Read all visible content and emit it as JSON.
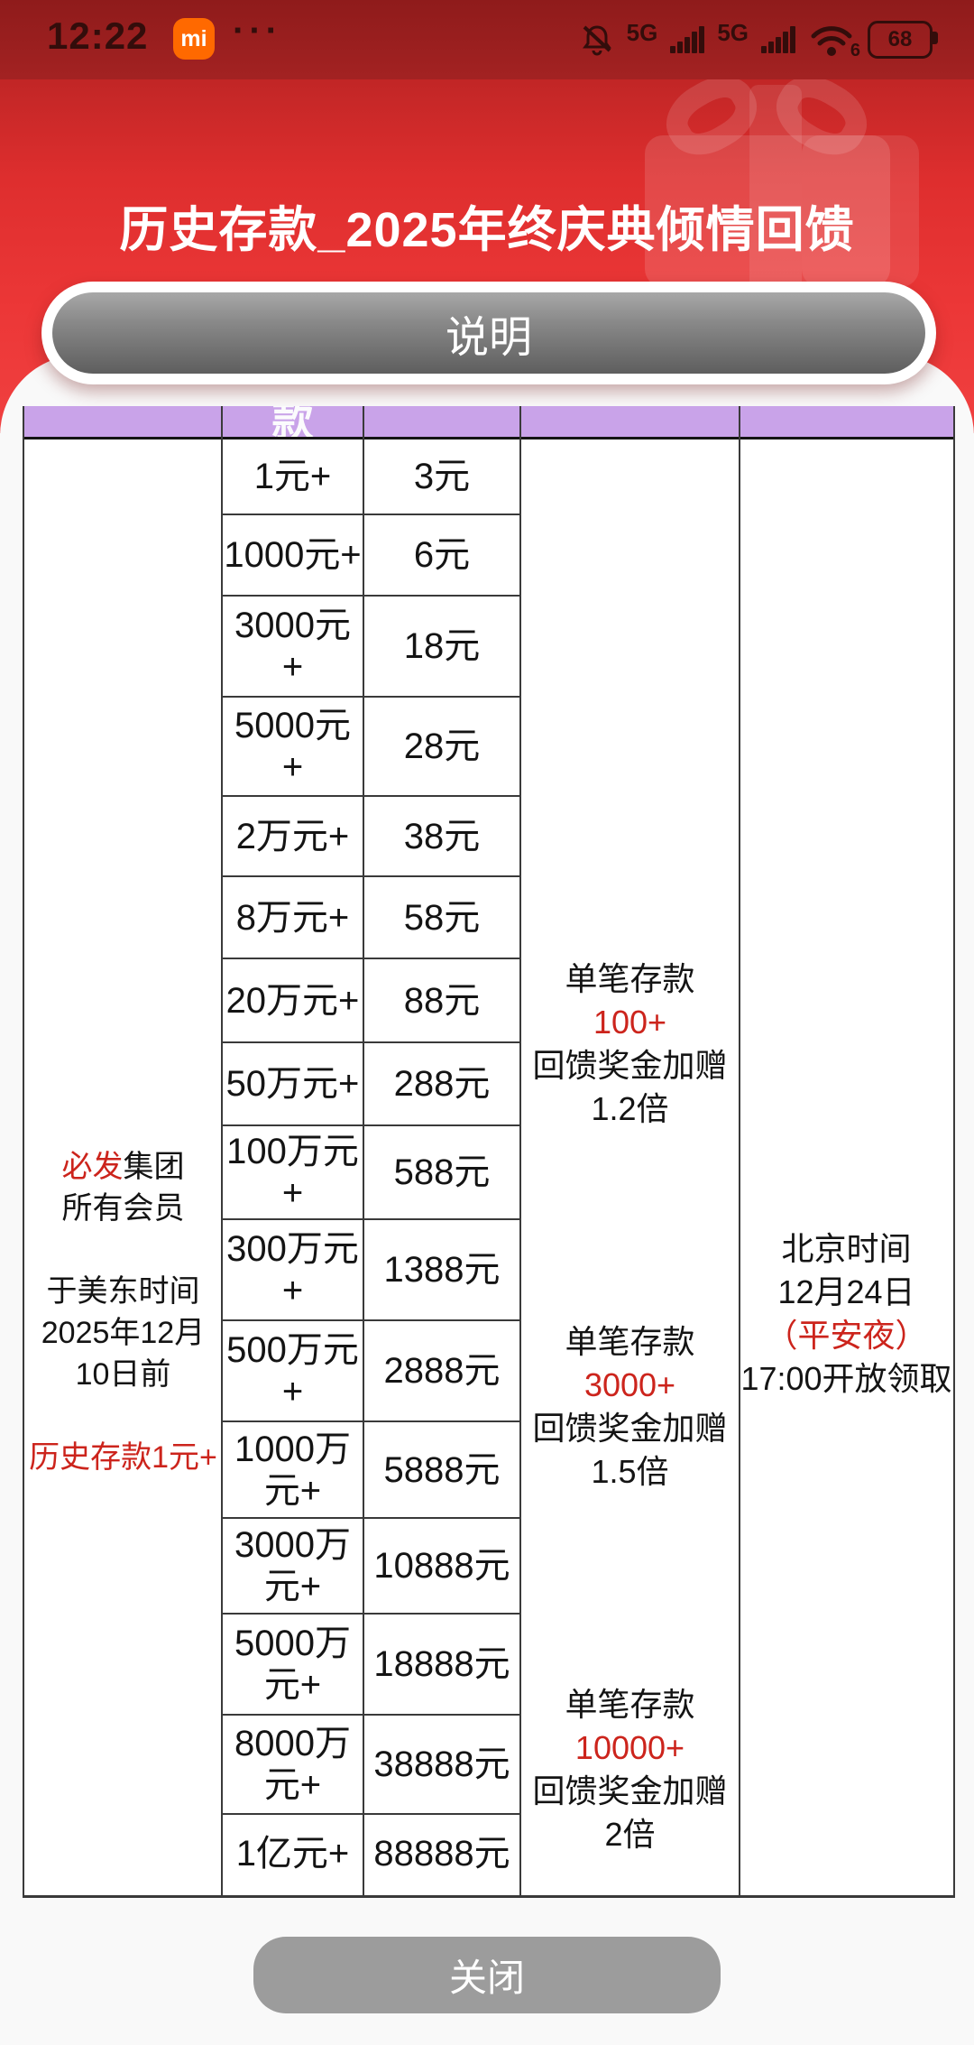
{
  "status_bar": {
    "time": "12:22",
    "mi_logo_text": "mi",
    "overflow_dots": "···",
    "network1_label": "5G",
    "network2_label": "5G",
    "wifi_standard": "6",
    "battery_percent": "68"
  },
  "header": {
    "title": "历史存款_2025年终庆典倾情回馈"
  },
  "buttons": {
    "info": "说明",
    "close": "关闭"
  },
  "colors": {
    "accent_red": "#CC241C",
    "table_header_purple": "#C9A3E9",
    "hero_red": "#EC3737",
    "statusbar_red": "#9A1E1E",
    "button_gray": "#9C9C9C"
  },
  "table": {
    "header_partial": "款",
    "member": {
      "brand_red": "必发",
      "brand_rest": "集团",
      "line2": "所有会员",
      "line3": "于美东时间",
      "line4": "2025年12月",
      "line5": "10日前",
      "highlight": "历史存款1元+"
    },
    "tiers": [
      {
        "deposit_lines": [
          "1元+"
        ],
        "reward": "3元"
      },
      {
        "deposit_lines": [
          "1000元+"
        ],
        "reward": "6元"
      },
      {
        "deposit_lines": [
          "3000元",
          "+"
        ],
        "reward": "18元"
      },
      {
        "deposit_lines": [
          "5000元",
          "+"
        ],
        "reward": "28元"
      },
      {
        "deposit_lines": [
          "2万元+"
        ],
        "reward": "38元"
      },
      {
        "deposit_lines": [
          "8万元+"
        ],
        "reward": "58元"
      },
      {
        "deposit_lines": [
          "20万元+"
        ],
        "reward": "88元"
      },
      {
        "deposit_lines": [
          "50万元+"
        ],
        "reward": "288元"
      },
      {
        "deposit_lines": [
          "100万元",
          "+"
        ],
        "reward": "588元"
      },
      {
        "deposit_lines": [
          "300万元",
          "+"
        ],
        "reward": "1388元"
      },
      {
        "deposit_lines": [
          "500万元",
          "+"
        ],
        "reward": "2888元"
      },
      {
        "deposit_lines": [
          "1000万",
          "元+"
        ],
        "reward": "5888元"
      },
      {
        "deposit_lines": [
          "3000万",
          "元+"
        ],
        "reward": "10888元"
      },
      {
        "deposit_lines": [
          "5000万",
          "元+"
        ],
        "reward": "18888元"
      },
      {
        "deposit_lines": [
          "8000万",
          "元+"
        ],
        "reward": "38888元"
      },
      {
        "deposit_lines": [
          "1亿元+"
        ],
        "reward": "88888元"
      }
    ],
    "bonus_blocks": [
      {
        "label": "单笔存款",
        "amount": "100+",
        "suffix": "回馈奖金加赠",
        "multiplier": "1.2倍"
      },
      {
        "label": "单笔存款",
        "amount": "3000+",
        "suffix": "回馈奖金加赠",
        "multiplier": "1.5倍"
      },
      {
        "label": "单笔存款",
        "amount": "10000+",
        "suffix": "回馈奖金加赠",
        "multiplier": "2倍"
      }
    ],
    "claim": {
      "line1": "北京时间",
      "line2": "12月24日",
      "parenthetical": "（平安夜）",
      "line3": "17:00开放领取"
    }
  }
}
